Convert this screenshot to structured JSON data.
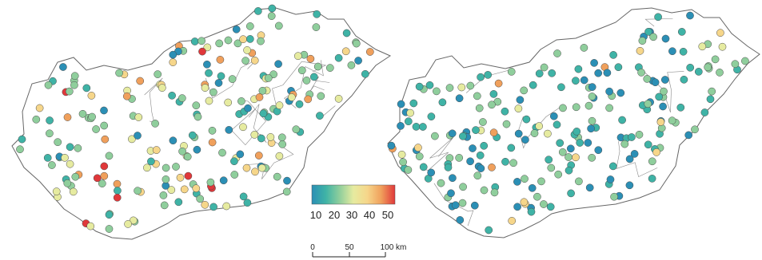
{
  "maps": [
    {
      "id": "map-left",
      "palette_bias": "warm"
    },
    {
      "id": "map-right",
      "palette_bias": "cool"
    }
  ],
  "colorbar": {
    "ticks": [
      "10",
      "20",
      "30",
      "40",
      "50"
    ],
    "colors": [
      "#2b8fb5",
      "#3fb3a6",
      "#8fce9c",
      "#e6eba0",
      "#f6d68a",
      "#f0a05c",
      "#e0383a"
    ]
  },
  "scalebar": {
    "ticks": [
      "0",
      "50",
      "100 km"
    ]
  },
  "colors": {
    "border": "#666666",
    "dot_outline": "#4a4a4a"
  }
}
